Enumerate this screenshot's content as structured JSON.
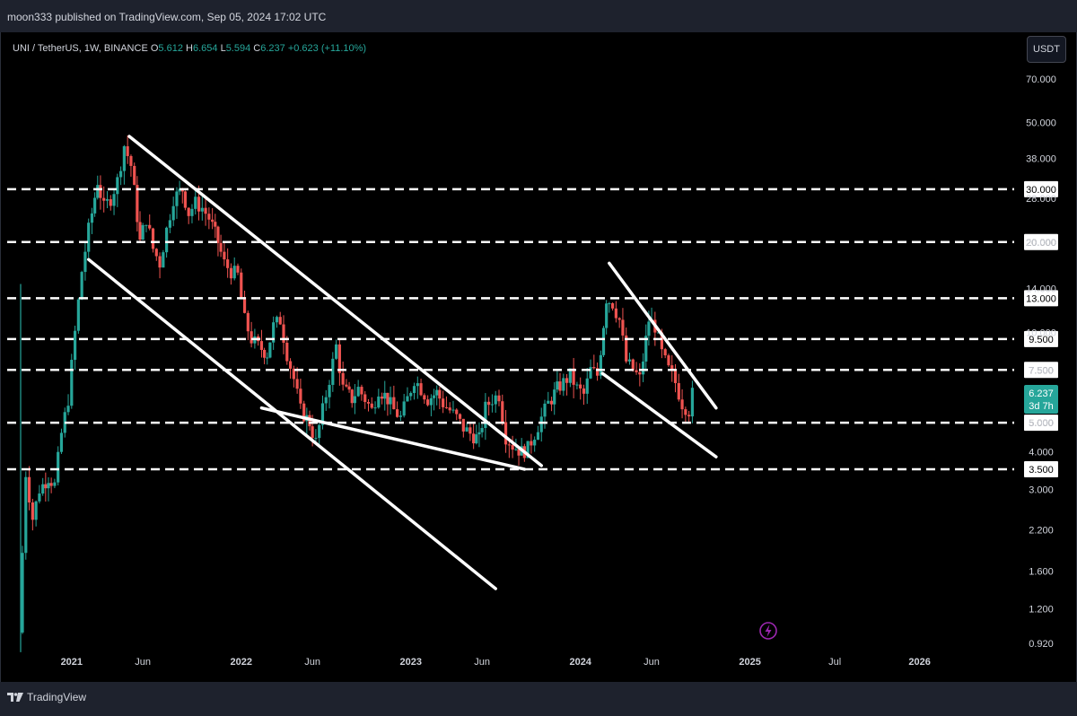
{
  "header": {
    "published": "moon333 published on TradingView.com, Sep 05, 2024 17:02 UTC"
  },
  "legend": {
    "symbol": "UNI / TetherUS, 1W, BINANCE",
    "o_label": "O",
    "o_value": "5.612",
    "h_label": "H",
    "h_value": "6.654",
    "l_label": "L",
    "l_value": "5.594",
    "c_label": "C",
    "c_value": "6.237",
    "change": "+0.623 (+11.10%)"
  },
  "currency_button": "USDT",
  "footer": {
    "brand": "TradingView"
  },
  "colors": {
    "up": "#26a69a",
    "down": "#ef5350",
    "background": "#000000",
    "drawing": "#ffffff",
    "last_price_bg": "#26a69a",
    "lightning": "#9c27b0"
  },
  "chart_data": {
    "type": "candlestick",
    "symbol": "UNI / TetherUS",
    "timeframe": "1W",
    "exchange": "BINANCE",
    "y_scale": "log",
    "ylim": [
      0.83,
      100
    ],
    "xlim": [
      2020.62,
      2026.6
    ],
    "y_ticks": [
      "70.000",
      "50.000",
      "38.000",
      "28.000",
      "20.000",
      "14.000",
      "10.000",
      "7.500",
      "5.000",
      "4.000",
      "3.000",
      "2.200",
      "1.600",
      "1.200",
      "0.920"
    ],
    "x_ticks": [
      {
        "t": 2021.0,
        "label": "2021",
        "major": true
      },
      {
        "t": 2021.42,
        "label": "Jun",
        "major": false
      },
      {
        "t": 2022.0,
        "label": "2022",
        "major": true
      },
      {
        "t": 2022.42,
        "label": "Jun",
        "major": false
      },
      {
        "t": 2023.0,
        "label": "2023",
        "major": true
      },
      {
        "t": 2023.42,
        "label": "Jun",
        "major": false
      },
      {
        "t": 2024.0,
        "label": "2024",
        "major": true
      },
      {
        "t": 2024.42,
        "label": "Jun",
        "major": false
      },
      {
        "t": 2025.0,
        "label": "2025",
        "major": true
      },
      {
        "t": 2025.5,
        "label": "Jul",
        "major": false
      },
      {
        "t": 2026.0,
        "label": "2026",
        "major": true
      }
    ],
    "horizontal_levels": [
      {
        "value": 30.0,
        "label": "30.000"
      },
      {
        "value": 20.0,
        "label": "20.000"
      },
      {
        "value": 13.0,
        "label": "13.000"
      },
      {
        "value": 9.5,
        "label": "9.500"
      },
      {
        "value": 7.5,
        "label": "7.500"
      },
      {
        "value": 5.0,
        "label": "5.000"
      },
      {
        "value": 3.5,
        "label": "3.500"
      }
    ],
    "last_price": {
      "value": 6.237,
      "label": "6.237",
      "countdown": "3d 7h"
    },
    "trendlines": [
      {
        "from": [
          2021.34,
          45.0
        ],
        "to": [
          2023.77,
          3.6
        ]
      },
      {
        "from": [
          2021.1,
          17.5
        ],
        "to": [
          2023.5,
          1.4
        ]
      },
      {
        "from": [
          2022.12,
          5.6
        ],
        "to": [
          2023.67,
          3.5
        ]
      },
      {
        "from": [
          2024.17,
          17.0
        ],
        "to": [
          2024.8,
          5.6
        ]
      },
      {
        "from": [
          2024.13,
          7.3
        ],
        "to": [
          2024.8,
          3.85
        ]
      }
    ],
    "close_path": [
      [
        2020.71,
        1.0
      ],
      [
        2020.75,
        3.4
      ],
      [
        2020.79,
        2.4
      ],
      [
        2020.83,
        3.0
      ],
      [
        2020.88,
        3.3
      ],
      [
        2020.92,
        3.1
      ],
      [
        2020.96,
        4.6
      ],
      [
        2021.0,
        6.0
      ],
      [
        2021.04,
        10.0
      ],
      [
        2021.08,
        16.0
      ],
      [
        2021.12,
        22.0
      ],
      [
        2021.17,
        32.0
      ],
      [
        2021.21,
        26.0
      ],
      [
        2021.25,
        28.0
      ],
      [
        2021.29,
        32.0
      ],
      [
        2021.33,
        42.0
      ],
      [
        2021.37,
        36.0
      ],
      [
        2021.42,
        20.0
      ],
      [
        2021.46,
        24.0
      ],
      [
        2021.5,
        19.0
      ],
      [
        2021.54,
        17.0
      ],
      [
        2021.58,
        22.0
      ],
      [
        2021.62,
        28.0
      ],
      [
        2021.67,
        30.0
      ],
      [
        2021.71,
        25.0
      ],
      [
        2021.75,
        27.0
      ],
      [
        2021.79,
        26.0
      ],
      [
        2021.83,
        24.0
      ],
      [
        2021.88,
        20.0
      ],
      [
        2021.92,
        17.0
      ],
      [
        2021.96,
        16.0
      ],
      [
        2022.0,
        15.5
      ],
      [
        2022.04,
        11.0
      ],
      [
        2022.08,
        9.5
      ],
      [
        2022.12,
        9.0
      ],
      [
        2022.17,
        8.5
      ],
      [
        2022.21,
        10.5
      ],
      [
        2022.25,
        11.0
      ],
      [
        2022.29,
        8.5
      ],
      [
        2022.33,
        7.0
      ],
      [
        2022.37,
        5.5
      ],
      [
        2022.42,
        5.0
      ],
      [
        2022.46,
        4.3
      ],
      [
        2022.5,
        5.5
      ],
      [
        2022.54,
        7.0
      ],
      [
        2022.58,
        9.0
      ],
      [
        2022.62,
        6.5
      ],
      [
        2022.67,
        6.0
      ],
      [
        2022.71,
        6.5
      ],
      [
        2022.75,
        6.0
      ],
      [
        2022.79,
        5.5
      ],
      [
        2022.83,
        6.5
      ],
      [
        2022.88,
        6.0
      ],
      [
        2022.92,
        5.5
      ],
      [
        2022.96,
        5.2
      ],
      [
        2023.0,
        6.0
      ],
      [
        2023.04,
        7.0
      ],
      [
        2023.08,
        6.5
      ],
      [
        2023.12,
        6.0
      ],
      [
        2023.17,
        6.3
      ],
      [
        2023.21,
        5.8
      ],
      [
        2023.25,
        5.5
      ],
      [
        2023.29,
        5.2
      ],
      [
        2023.33,
        4.8
      ],
      [
        2023.37,
        4.6
      ],
      [
        2023.42,
        4.4
      ],
      [
        2023.46,
        5.6
      ],
      [
        2023.5,
        6.0
      ],
      [
        2023.54,
        6.2
      ],
      [
        2023.58,
        4.5
      ],
      [
        2023.62,
        4.2
      ],
      [
        2023.67,
        4.0
      ],
      [
        2023.71,
        4.1
      ],
      [
        2023.75,
        4.6
      ],
      [
        2023.79,
        5.2
      ],
      [
        2023.83,
        5.8
      ],
      [
        2023.88,
        6.5
      ],
      [
        2023.92,
        6.8
      ],
      [
        2023.96,
        7.2
      ],
      [
        2024.0,
        6.5
      ],
      [
        2024.04,
        6.2
      ],
      [
        2024.08,
        7.5
      ],
      [
        2024.12,
        7.2
      ],
      [
        2024.17,
        13.0
      ],
      [
        2024.21,
        12.5
      ],
      [
        2024.25,
        11.0
      ],
      [
        2024.29,
        8.0
      ],
      [
        2024.33,
        7.5
      ],
      [
        2024.37,
        7.0
      ],
      [
        2024.42,
        11.0
      ],
      [
        2024.46,
        10.5
      ],
      [
        2024.5,
        8.5
      ],
      [
        2024.54,
        7.5
      ],
      [
        2024.58,
        6.8
      ],
      [
        2024.62,
        5.8
      ],
      [
        2024.66,
        5.5
      ],
      [
        2024.68,
        6.237
      ]
    ]
  }
}
